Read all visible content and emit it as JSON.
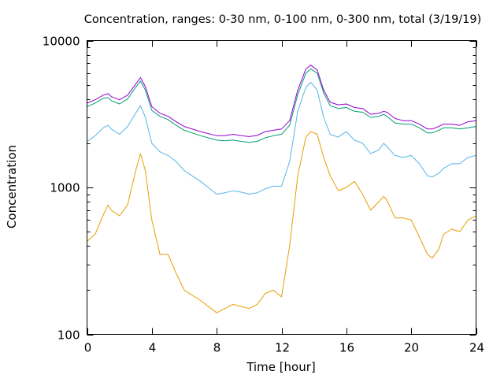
{
  "chart_data": {
    "type": "line",
    "title": "Concentration, ranges: 0-30 nm, 0-100 nm, 0-300 nm, total (3/19/19)",
    "xlabel": "Time [hour]",
    "ylabel": "Concentration",
    "xlim": [
      0,
      24
    ],
    "ylim": [
      100,
      10000
    ],
    "yscale": "log",
    "grid": false,
    "legend": "none",
    "x_ticks": [
      0,
      4,
      8,
      12,
      16,
      20,
      24
    ],
    "x_tick_labels": [
      "0",
      "4",
      "8",
      "12",
      "16",
      "20",
      "24"
    ],
    "y_ticks": [
      100,
      1000,
      10000
    ],
    "y_tick_labels": [
      "100",
      "1000",
      "10000"
    ],
    "x": [
      0,
      0.5,
      1,
      1.3,
      1.5,
      2,
      2.5,
      3,
      3.3,
      3.6,
      4,
      4.5,
      5,
      5.5,
      6,
      7,
      8,
      8.5,
      9,
      9.5,
      10,
      10.5,
      11,
      11.5,
      12,
      12.5,
      13,
      13.5,
      13.8,
      14.2,
      14.6,
      15,
      15.5,
      16,
      16.5,
      17,
      17.5,
      18,
      18.3,
      18.5,
      19,
      19.5,
      20,
      20.5,
      21,
      21.3,
      21.7,
      22,
      22.5,
      23,
      23.5,
      24
    ],
    "series": [
      {
        "color": "#e69f00",
        "values": [
          430,
          480,
          650,
          760,
          700,
          640,
          760,
          1300,
          1700,
          1300,
          600,
          350,
          350,
          260,
          200,
          170,
          140,
          150,
          160,
          155,
          150,
          160,
          190,
          200,
          180,
          400,
          1200,
          2200,
          2400,
          2300,
          1600,
          1200,
          950,
          1000,
          1100,
          900,
          700,
          800,
          870,
          820,
          620,
          620,
          600,
          460,
          350,
          330,
          380,
          480,
          520,
          500,
          600,
          640
        ]
      },
      {
        "color": "#56b4e9",
        "values": [
          2050,
          2250,
          2550,
          2650,
          2500,
          2300,
          2600,
          3200,
          3600,
          3000,
          2000,
          1750,
          1650,
          1500,
          1300,
          1100,
          900,
          920,
          950,
          930,
          900,
          920,
          980,
          1020,
          1020,
          1500,
          3300,
          4800,
          5200,
          4600,
          3000,
          2300,
          2200,
          2400,
          2100,
          2000,
          1700,
          1800,
          2000,
          1900,
          1650,
          1600,
          1650,
          1450,
          1200,
          1180,
          1250,
          1350,
          1450,
          1450,
          1600,
          1650
        ]
      },
      {
        "color": "#009e73",
        "values": [
          3550,
          3750,
          4050,
          4100,
          3900,
          3700,
          4000,
          4800,
          5300,
          4600,
          3350,
          3050,
          2900,
          2650,
          2450,
          2250,
          2100,
          2080,
          2100,
          2060,
          2030,
          2060,
          2180,
          2250,
          2300,
          2650,
          4300,
          6000,
          6400,
          6000,
          4400,
          3600,
          3450,
          3500,
          3300,
          3250,
          3000,
          3050,
          3150,
          3050,
          2750,
          2700,
          2700,
          2550,
          2350,
          2350,
          2450,
          2550,
          2550,
          2500,
          2550,
          2600
        ]
      },
      {
        "color": "#9400d3",
        "values": [
          3750,
          3950,
          4250,
          4350,
          4150,
          3950,
          4250,
          5050,
          5600,
          4850,
          3550,
          3200,
          3050,
          2800,
          2600,
          2400,
          2250,
          2250,
          2300,
          2250,
          2220,
          2260,
          2400,
          2450,
          2500,
          2850,
          4600,
          6400,
          6800,
          6300,
          4600,
          3800,
          3650,
          3700,
          3500,
          3450,
          3150,
          3200,
          3300,
          3250,
          2950,
          2850,
          2850,
          2700,
          2500,
          2500,
          2600,
          2700,
          2700,
          2650,
          2800,
          2850
        ]
      }
    ]
  }
}
